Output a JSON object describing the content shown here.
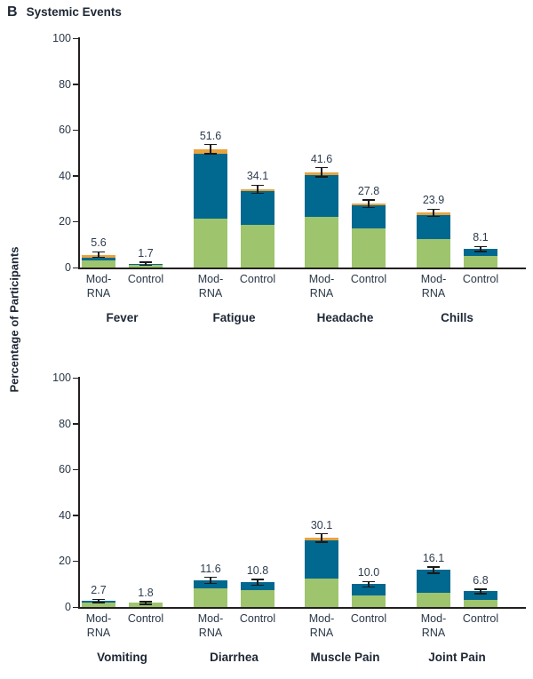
{
  "title": {
    "panel_letter": "B",
    "text": "Systemic Events"
  },
  "ylabel": "Percentage of Participants",
  "colors": {
    "mild": "#9ec46d",
    "moderate": "#01688f",
    "severe": "#e9a43f",
    "axis": "#231f20",
    "error_bar": "#1a1a1a",
    "text": "#2a3747"
  },
  "severity_order": [
    "mild",
    "moderate",
    "severe"
  ],
  "chart_data": [
    {
      "type": "bar",
      "stacked": true,
      "panel": "top",
      "ylim": [
        0,
        100
      ],
      "yticks": [
        0,
        20,
        40,
        60,
        80,
        100
      ],
      "grid": false,
      "legend": "none",
      "groups": [
        {
          "label": "Fever",
          "bars": [
            {
              "label_lines": [
                "Mod-",
                "RNA"
              ],
              "total": 5.6,
              "total_label": "5.6",
              "ci": 1.2,
              "segments": {
                "mild": 3.2,
                "moderate": 1.2,
                "severe": 1.2
              }
            },
            {
              "label_lines": [
                "Control"
              ],
              "total": 1.7,
              "total_label": "1.7",
              "ci": 0.7,
              "segments": {
                "mild": 1.2,
                "moderate": 0.5,
                "severe": 0
              }
            }
          ]
        },
        {
          "label": "Fatigue",
          "bars": [
            {
              "label_lines": [
                "Mod-",
                "RNA"
              ],
              "total": 51.6,
              "total_label": "51.6",
              "ci": 2.0,
              "segments": {
                "mild": 21.3,
                "moderate": 28.4,
                "severe": 1.9
              }
            },
            {
              "label_lines": [
                "Control"
              ],
              "total": 34.1,
              "total_label": "34.1",
              "ci": 1.8,
              "segments": {
                "mild": 18.6,
                "moderate": 14.7,
                "severe": 0.8
              }
            }
          ]
        },
        {
          "label": "Headache",
          "bars": [
            {
              "label_lines": [
                "Mod-",
                "RNA"
              ],
              "total": 41.6,
              "total_label": "41.6",
              "ci": 2.0,
              "segments": {
                "mild": 22.1,
                "moderate": 18.2,
                "severe": 1.3
              }
            },
            {
              "label_lines": [
                "Control"
              ],
              "total": 27.8,
              "total_label": "27.8",
              "ci": 1.7,
              "segments": {
                "mild": 17.0,
                "moderate": 10.0,
                "severe": 0.8
              }
            }
          ]
        },
        {
          "label": "Chills",
          "bars": [
            {
              "label_lines": [
                "Mod-",
                "RNA"
              ],
              "total": 23.9,
              "total_label": "23.9",
              "ci": 1.6,
              "segments": {
                "mild": 12.4,
                "moderate": 10.6,
                "severe": 0.9
              }
            },
            {
              "label_lines": [
                "Control"
              ],
              "total": 8.1,
              "total_label": "8.1",
              "ci": 1.1,
              "segments": {
                "mild": 5.0,
                "moderate": 3.1,
                "severe": 0
              }
            }
          ]
        }
      ]
    },
    {
      "type": "bar",
      "stacked": true,
      "panel": "bottom",
      "ylim": [
        0,
        100
      ],
      "yticks": [
        0,
        20,
        40,
        60,
        80,
        100
      ],
      "grid": false,
      "legend": "none",
      "groups": [
        {
          "label": "Vomiting",
          "bars": [
            {
              "label_lines": [
                "Mod-",
                "RNA"
              ],
              "total": 2.7,
              "total_label": "2.7",
              "ci": 0.7,
              "segments": {
                "mild": 2.0,
                "moderate": 0.7,
                "severe": 0
              }
            },
            {
              "label_lines": [
                "Control"
              ],
              "total": 1.8,
              "total_label": "1.8",
              "ci": 0.6,
              "segments": {
                "mild": 1.8,
                "moderate": 0,
                "severe": 0
              }
            }
          ]
        },
        {
          "label": "Diarrhea",
          "bars": [
            {
              "label_lines": [
                "Mod-",
                "RNA"
              ],
              "total": 11.6,
              "total_label": "11.6",
              "ci": 1.3,
              "segments": {
                "mild": 8.1,
                "moderate": 3.5,
                "severe": 0
              }
            },
            {
              "label_lines": [
                "Control"
              ],
              "total": 10.8,
              "total_label": "10.8",
              "ci": 1.2,
              "segments": {
                "mild": 7.4,
                "moderate": 3.4,
                "severe": 0
              }
            }
          ]
        },
        {
          "label": "Muscle Pain",
          "bars": [
            {
              "label_lines": [
                "Mod-",
                "RNA"
              ],
              "total": 30.1,
              "total_label": "30.1",
              "ci": 1.8,
              "segments": {
                "mild": 12.5,
                "moderate": 16.4,
                "severe": 1.2
              }
            },
            {
              "label_lines": [
                "Control"
              ],
              "total": 10.0,
              "total_label": "10.0",
              "ci": 1.2,
              "segments": {
                "mild": 5.0,
                "moderate": 5.0,
                "severe": 0
              }
            }
          ]
        },
        {
          "label": "Joint Pain",
          "bars": [
            {
              "label_lines": [
                "Mod-",
                "RNA"
              ],
              "total": 16.1,
              "total_label": "16.1",
              "ci": 1.4,
              "segments": {
                "mild": 6.3,
                "moderate": 9.8,
                "severe": 0
              }
            },
            {
              "label_lines": [
                "Control"
              ],
              "total": 6.8,
              "total_label": "6.8",
              "ci": 1.0,
              "segments": {
                "mild": 3.0,
                "moderate": 3.8,
                "severe": 0
              }
            }
          ]
        }
      ]
    }
  ]
}
